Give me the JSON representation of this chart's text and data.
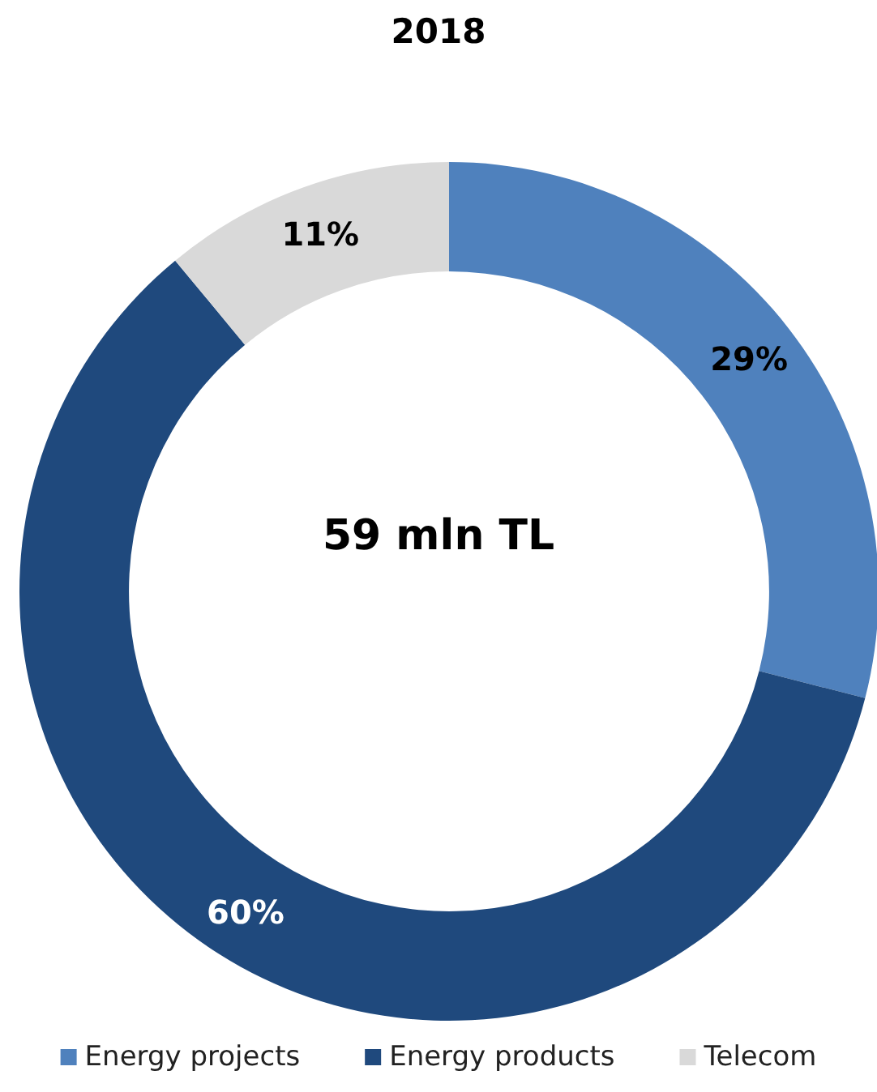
{
  "chart_data": {
    "type": "donut",
    "title": "2018",
    "categories": [
      "Energy projects",
      "Energy products",
      "Telecom"
    ],
    "values": [
      29,
      60,
      11
    ],
    "colors": [
      "#4f81bd",
      "#1f497d",
      "#d9d9d9"
    ],
    "value_labels": [
      "29%",
      "60%",
      "11%"
    ],
    "annotations": [
      "59 mln TL"
    ],
    "legend": "bottom"
  }
}
